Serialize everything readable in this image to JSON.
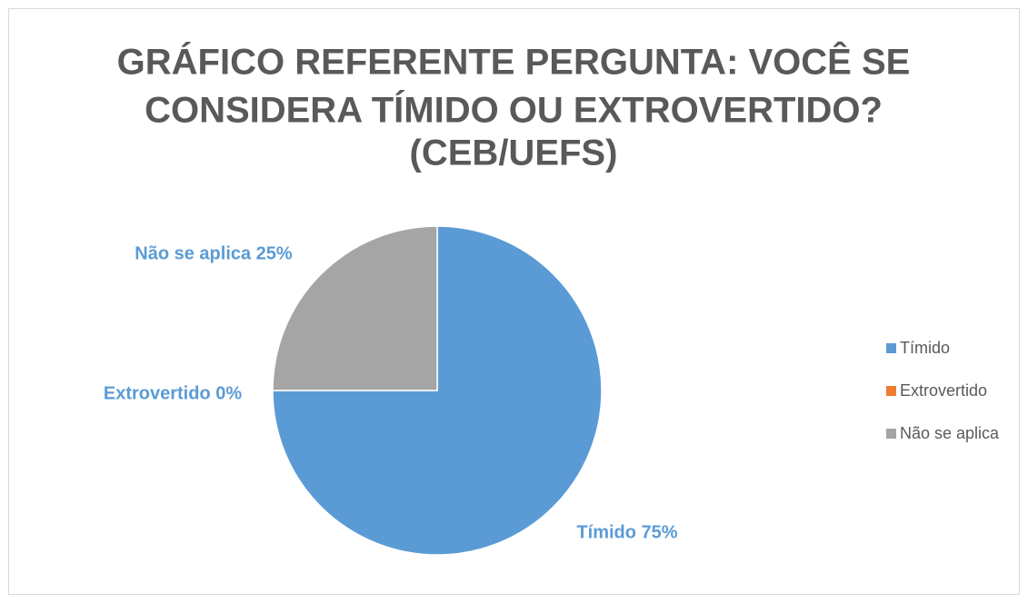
{
  "chart_data": {
    "type": "pie",
    "title": [
      "GRÁFICO REFERENTE  PERGUNTA: VOCÊ SE",
      "CONSIDERA TÍMIDO OU EXTROVERTIDO?",
      "(CEB/UEFS)"
    ],
    "categories": [
      "Tímido",
      "Extrovertido",
      "Não se aplica"
    ],
    "values": [
      75,
      0,
      25
    ],
    "value_labels": [
      "Tímido 75%",
      "Extrovertido 0%",
      "Não se aplica  25%"
    ],
    "colors": [
      "#5b9bd5",
      "#ed7d31",
      "#a5a5a5"
    ],
    "legend": "right"
  }
}
